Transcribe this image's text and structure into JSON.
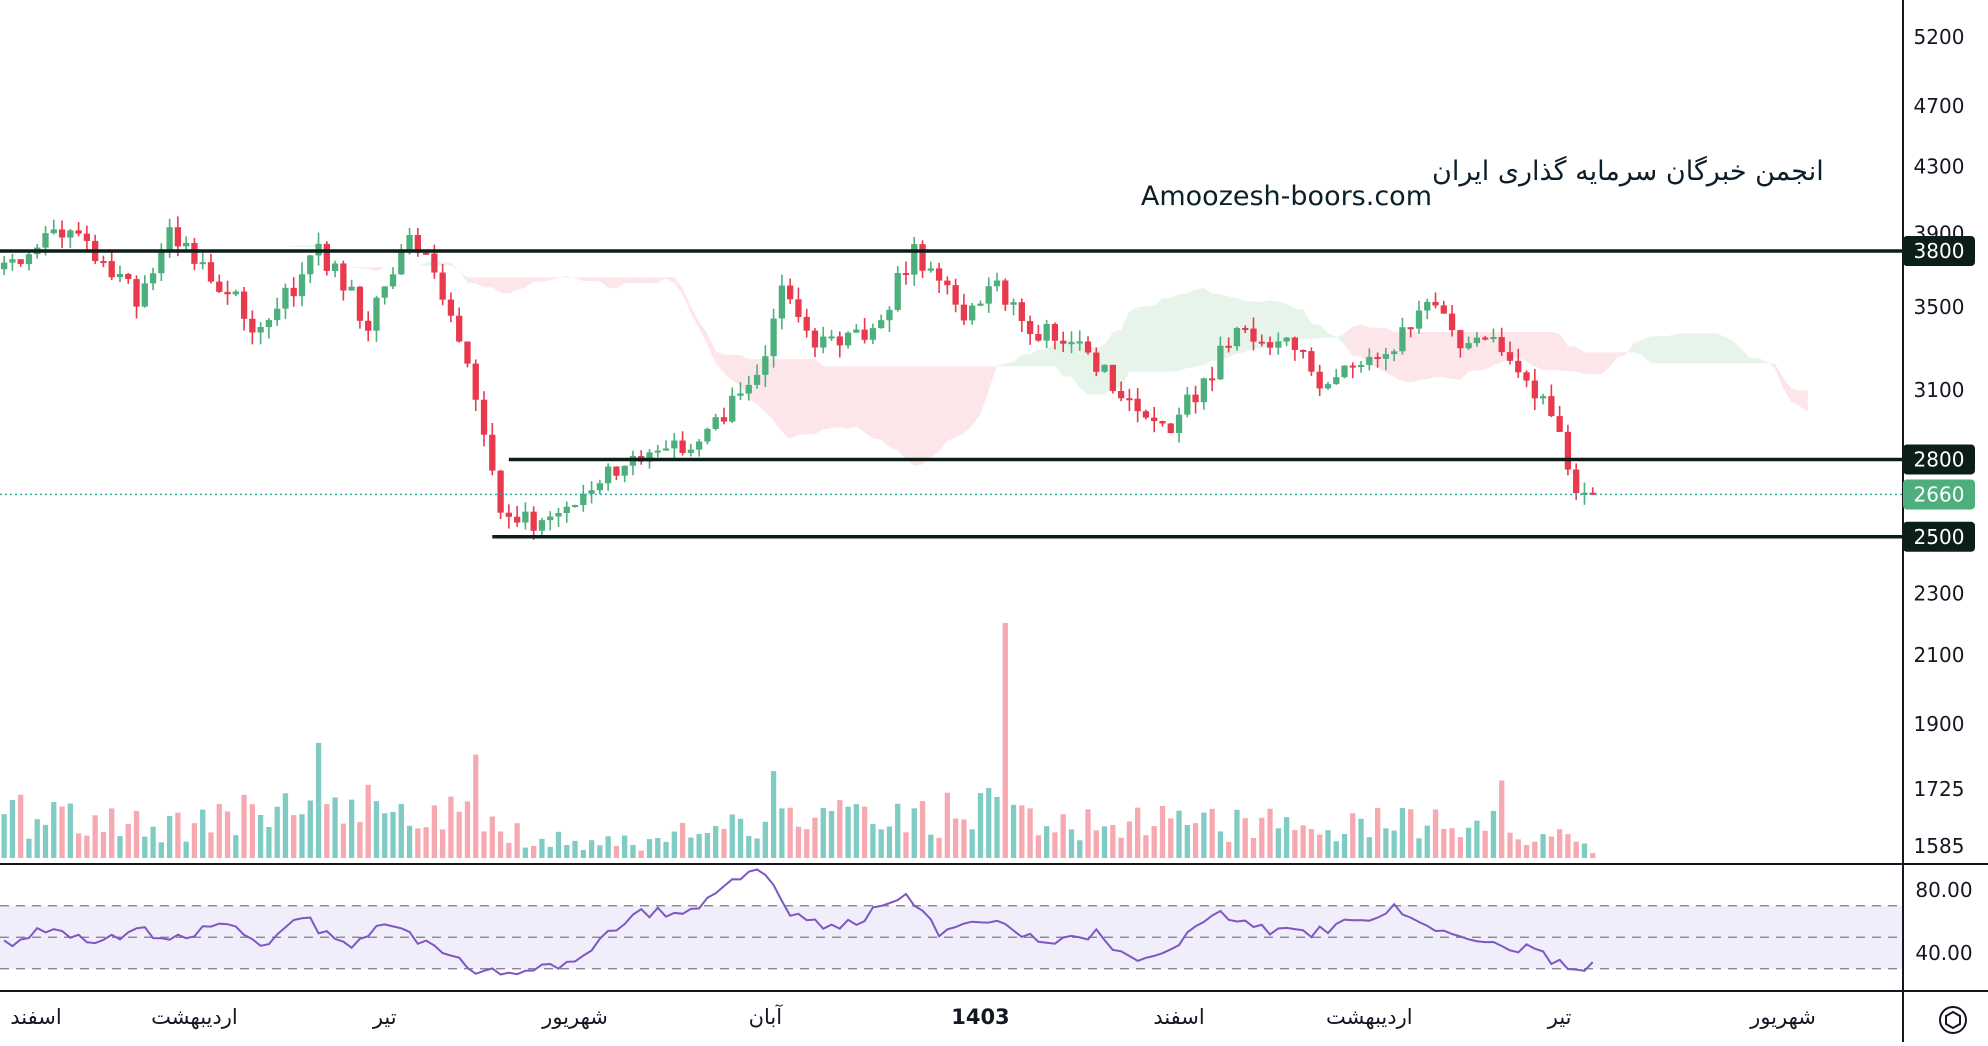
{
  "watermark": {
    "line1": "انجمن خبرگان سرمایه گذاری ایران",
    "line2": "Amoozesh-boors.com"
  },
  "chart_data": {
    "type": "candlestick",
    "price_axis": {
      "ticks": [
        5200,
        4700,
        4300,
        3900,
        3500,
        3100,
        2300,
        2100,
        1900,
        1725,
        1585
      ],
      "tick_labels": [
        "5200",
        "4700",
        "4300",
        "3900",
        "3500",
        "3100",
        "2300",
        "2100",
        "1900",
        "1725",
        "1585"
      ],
      "scale": "log",
      "range": [
        1520,
        5600
      ]
    },
    "rsi_axis": {
      "ticks": [
        80,
        40
      ],
      "tick_labels": [
        "80.00",
        "40.00"
      ],
      "band": [
        30,
        70
      ],
      "midline": 50,
      "range": [
        20,
        100
      ]
    },
    "time_axis": {
      "labels": [
        "اسفند",
        "اردیبهشت",
        "تیر",
        "شهریور",
        "آبان",
        "1403",
        "اسفند",
        "اردیبهشت",
        "تیر",
        "شهریور"
      ],
      "label_bold": [
        false,
        false,
        false,
        false,
        false,
        true,
        false,
        false,
        false,
        false
      ],
      "label_slots": [
        0,
        23,
        46,
        69,
        92,
        118,
        142,
        165,
        188,
        215
      ],
      "slots_total": 230
    },
    "levels": [
      {
        "price": 3800,
        "label": "3800",
        "start_slot": 0
      },
      {
        "price": 2800,
        "label": "2800",
        "start_slot": 61
      },
      {
        "price": 2500,
        "label": "2500",
        "start_slot": 59
      }
    ],
    "last_price": {
      "price": 2660,
      "label": "2660"
    },
    "close_path": [
      [
        0,
        3700
      ],
      [
        6,
        3950
      ],
      [
        12,
        3760
      ],
      [
        16,
        3540
      ],
      [
        20,
        3880
      ],
      [
        26,
        3640
      ],
      [
        31,
        3380
      ],
      [
        38,
        3800
      ],
      [
        44,
        3420
      ],
      [
        49,
        3880
      ],
      [
        53,
        3600
      ],
      [
        57,
        3100
      ],
      [
        60,
        2620
      ],
      [
        64,
        2540
      ],
      [
        69,
        2620
      ],
      [
        76,
        2830
      ],
      [
        84,
        2870
      ],
      [
        91,
        3150
      ],
      [
        94,
        3560
      ],
      [
        99,
        3300
      ],
      [
        105,
        3380
      ],
      [
        110,
        3780
      ],
      [
        113,
        3630
      ],
      [
        116,
        3420
      ],
      [
        120,
        3640
      ],
      [
        124,
        3360
      ],
      [
        129,
        3380
      ],
      [
        136,
        3020
      ],
      [
        141,
        2950
      ],
      [
        146,
        3180
      ],
      [
        149,
        3400
      ],
      [
        154,
        3330
      ],
      [
        159,
        3160
      ],
      [
        163,
        3250
      ],
      [
        168,
        3300
      ],
      [
        172,
        3580
      ],
      [
        176,
        3300
      ],
      [
        180,
        3300
      ],
      [
        185,
        3100
      ],
      [
        188,
        2900
      ],
      [
        190,
        2680
      ],
      [
        192,
        2660
      ]
    ],
    "volume_path": [
      [
        0,
        0.18
      ],
      [
        20,
        0.14
      ],
      [
        38,
        0.23
      ],
      [
        57,
        0.16
      ],
      [
        64,
        0.08
      ],
      [
        76,
        0.06
      ],
      [
        92,
        0.17
      ],
      [
        110,
        0.15
      ],
      [
        118,
        0.21
      ],
      [
        124,
        0.15
      ],
      [
        141,
        0.16
      ],
      [
        149,
        0.14
      ],
      [
        165,
        0.14
      ],
      [
        180,
        0.13
      ],
      [
        188,
        0.09
      ],
      [
        192,
        0.03
      ]
    ],
    "volume_spikes": [
      {
        "slot": 38,
        "value": 0.49
      },
      {
        "slot": 57,
        "value": 0.44
      },
      {
        "slot": 93,
        "value": 0.37
      },
      {
        "slot": 121,
        "value": 1.0
      },
      {
        "slot": 181,
        "value": 0.33
      }
    ],
    "rsi_path": [
      [
        0,
        45
      ],
      [
        6,
        58
      ],
      [
        10,
        46
      ],
      [
        17,
        54
      ],
      [
        22,
        47
      ],
      [
        26,
        62
      ],
      [
        31,
        44
      ],
      [
        36,
        63
      ],
      [
        41,
        44
      ],
      [
        46,
        58
      ],
      [
        51,
        45
      ],
      [
        57,
        30
      ],
      [
        63,
        28
      ],
      [
        68,
        32
      ],
      [
        76,
        64
      ],
      [
        83,
        67
      ],
      [
        88,
        84
      ],
      [
        92,
        93
      ],
      [
        95,
        64
      ],
      [
        101,
        56
      ],
      [
        109,
        76
      ],
      [
        113,
        52
      ],
      [
        120,
        60
      ],
      [
        125,
        46
      ],
      [
        132,
        53
      ],
      [
        137,
        32
      ],
      [
        141,
        42
      ],
      [
        146,
        66
      ],
      [
        151,
        55
      ],
      [
        157,
        52
      ],
      [
        163,
        60
      ],
      [
        168,
        68
      ],
      [
        173,
        55
      ],
      [
        178,
        47
      ],
      [
        184,
        42
      ],
      [
        188,
        33
      ],
      [
        190,
        30
      ],
      [
        192,
        33
      ]
    ],
    "volume_axis_bottom_price": 1585,
    "colors": {
      "up": "#26a69a",
      "up_body": "#4caf7c",
      "down": "#ef5350",
      "down_body": "#e8394d",
      "vol_up": "#80cbc4",
      "vol_down": "#f7a9b2",
      "cloud_bull": "#e6f4ea",
      "cloud_bear": "#fde6e9",
      "rsi_line": "#7e57c2",
      "rsi_band": "#f1eefb",
      "level": "#0b1f18",
      "last_price_tag": "#4caf7c"
    }
  }
}
